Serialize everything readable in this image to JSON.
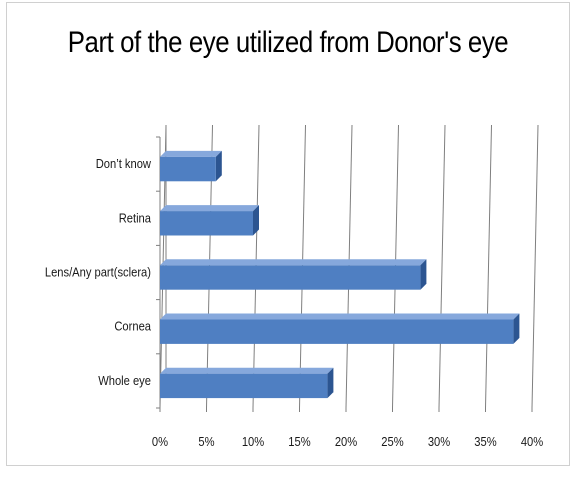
{
  "chart_data": {
    "type": "bar",
    "orientation": "horizontal",
    "title": "Part of the eye utilized from Donor's eye",
    "categories": [
      "Whole eye",
      "Cornea",
      "Lens/Any part(sclera)",
      "Retina",
      "Don’t know"
    ],
    "values": [
      18,
      38,
      28,
      10,
      6
    ],
    "x_ticks": [
      "0%",
      "5%",
      "10%",
      "15%",
      "20%",
      "25%",
      "30%",
      "35%",
      "40%"
    ],
    "xlim": [
      0,
      40
    ],
    "unit": "%",
    "grid": true,
    "style": "3d",
    "colors": {
      "bar_front": "#4f7fc2",
      "bar_top": "#86a8dc",
      "bar_side": "#2c5591",
      "grid": "#7f7f7f"
    }
  }
}
